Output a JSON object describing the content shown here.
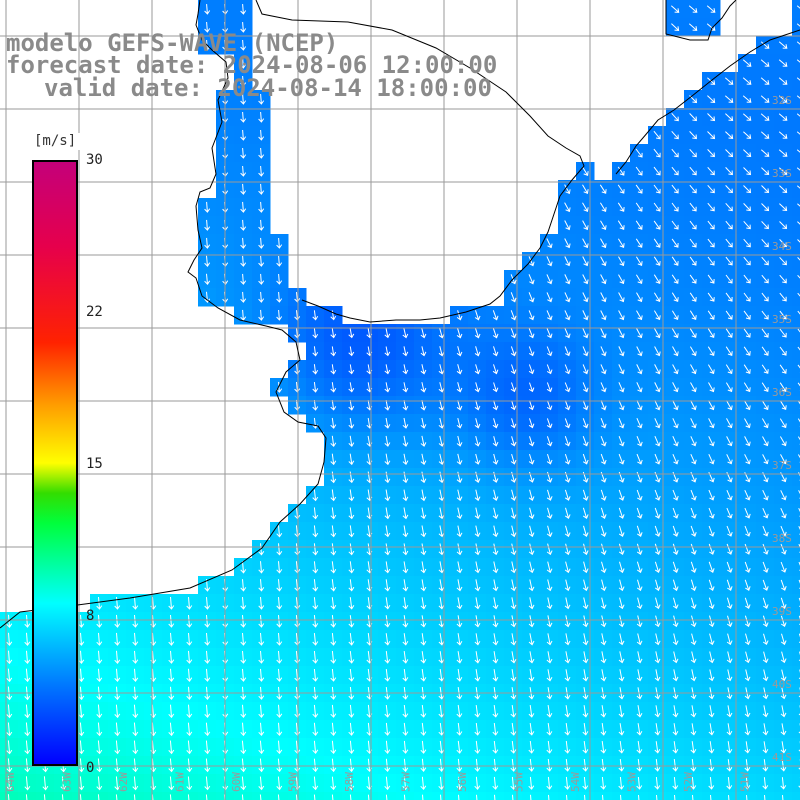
{
  "title": {
    "model_line": "modelo GEFS-WAVE (NCEP)",
    "forecast_line": "forecast date: 2024-08-06 12:00:00",
    "valid_line": "valid date: 2024-08-14 18:00:00"
  },
  "colorbar": {
    "unit": "[m/s]",
    "ticks": [
      {
        "label": "30",
        "value": 30
      },
      {
        "label": "22",
        "value": 22
      },
      {
        "label": "15",
        "value": 15
      },
      {
        "label": "8",
        "value": 8
      },
      {
        "label": "0",
        "value": 0
      }
    ],
    "colors": [
      "#0000ff",
      "#0077ff",
      "#00ffff",
      "#00ff3c",
      "#ffff00",
      "#ff2200",
      "#c4007a"
    ]
  },
  "map": {
    "field": "wind speed and direction",
    "longitude_range": [
      -65,
      -49
    ],
    "latitude_range": [
      -42,
      -31
    ],
    "grid_step_degrees": 1,
    "grid_color": "#9a9a9a",
    "coastline_color": "#000000",
    "vector_color": "#ffffff",
    "lon_labels": [
      "64W",
      "63W",
      "62W",
      "61W",
      "60W",
      "59W",
      "58W",
      "57W",
      "56W",
      "55W",
      "54W",
      "53W",
      "52W",
      "51W"
    ],
    "lat_labels": [
      "32S",
      "33S",
      "34S",
      "35S",
      "36S",
      "37S",
      "38S",
      "39S",
      "40S",
      "41S"
    ]
  }
}
